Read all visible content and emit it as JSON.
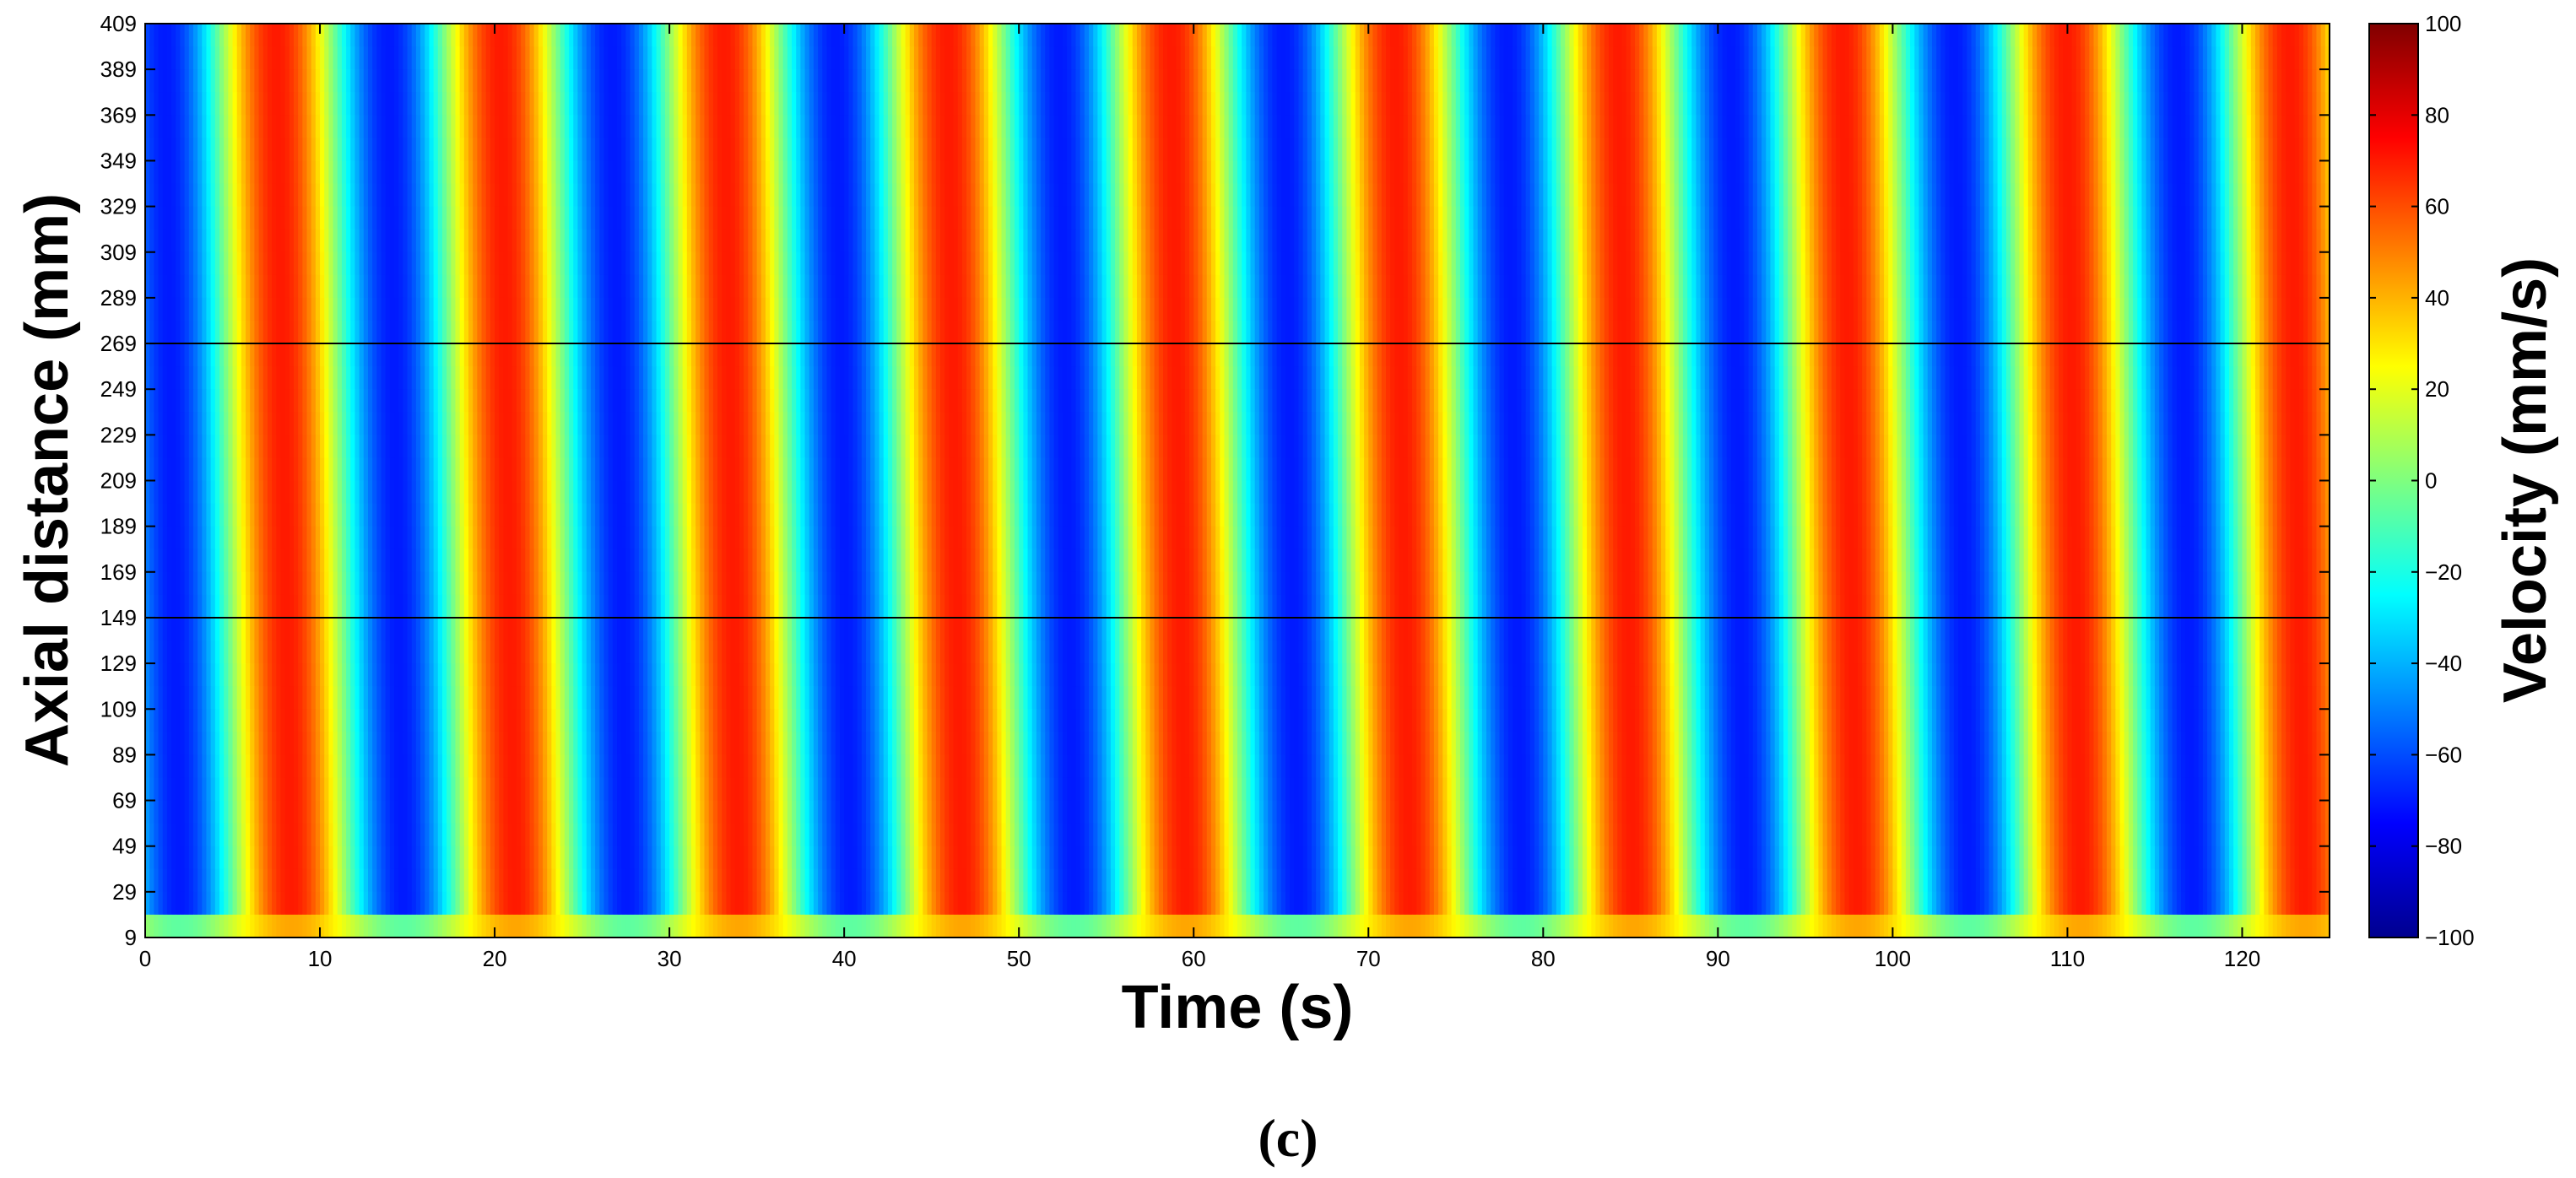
{
  "chart_data": {
    "type": "heatmap",
    "xlabel": "Time (s)",
    "ylabel": "Axial distance (mm)",
    "colorbar_label": "Velocity (mm/s)",
    "caption": "(c)",
    "x_range": [
      0,
      125
    ],
    "y_range": [
      9,
      409
    ],
    "color_range": [
      -100,
      100
    ],
    "colormap": "jet",
    "x_ticks": [
      0,
      10,
      20,
      30,
      40,
      50,
      60,
      70,
      80,
      90,
      100,
      110,
      120
    ],
    "y_ticks": [
      9,
      29,
      49,
      69,
      89,
      109,
      129,
      149,
      169,
      189,
      209,
      229,
      249,
      269,
      289,
      309,
      329,
      349,
      369,
      389,
      409
    ],
    "colorbar_ticks": [
      -100,
      -80,
      -60,
      -40,
      -20,
      0,
      20,
      40,
      60,
      80,
      100
    ],
    "horizontal_lines_y": [
      149,
      269
    ],
    "oscillation_period_s": 12.8,
    "velocity_amplitude_mm_s": 70,
    "grid": false
  }
}
